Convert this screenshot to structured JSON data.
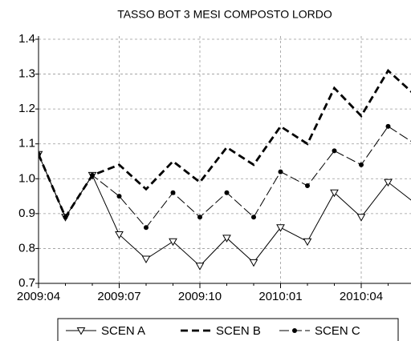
{
  "chart_data": {
    "type": "line",
    "title": "TASSO BOT 3 MESI COMPOSTO LORDO",
    "categories": [
      "2009:04",
      null,
      null,
      "2009:07",
      null,
      null,
      "2009:10",
      null,
      null,
      "2010:01",
      null,
      null,
      "2010:04",
      null,
      null
    ],
    "series": [
      {
        "name": "SCEN A",
        "color": "#000000",
        "line": "solid",
        "marker": "triangle-down",
        "values": [
          1.07,
          0.89,
          1.01,
          0.84,
          0.77,
          0.82,
          0.75,
          0.83,
          0.76,
          0.86,
          0.82,
          0.96,
          0.89,
          0.99,
          0.93
        ]
      },
      {
        "name": "SCEN B",
        "color": "#000000",
        "line": "dashed",
        "marker": "none",
        "values": [
          1.07,
          0.89,
          1.01,
          1.04,
          0.97,
          1.05,
          0.99,
          1.09,
          1.04,
          1.15,
          1.1,
          1.26,
          1.18,
          1.31,
          1.24
        ]
      },
      {
        "name": "SCEN C",
        "color": "#000000",
        "line": "dashdot",
        "marker": "circle",
        "values": [
          1.07,
          0.89,
          1.01,
          0.95,
          0.86,
          0.96,
          0.89,
          0.96,
          0.89,
          1.02,
          0.98,
          1.08,
          1.04,
          1.15,
          1.1
        ]
      }
    ],
    "ylim": [
      0.7,
      1.4
    ],
    "yticks": [
      0.7,
      0.8,
      0.9,
      {
        "value": 1,
        "label": "1.0"
      },
      1.1,
      1.2,
      1.3,
      1.4
    ],
    "grid": true,
    "legend": "bottom"
  }
}
